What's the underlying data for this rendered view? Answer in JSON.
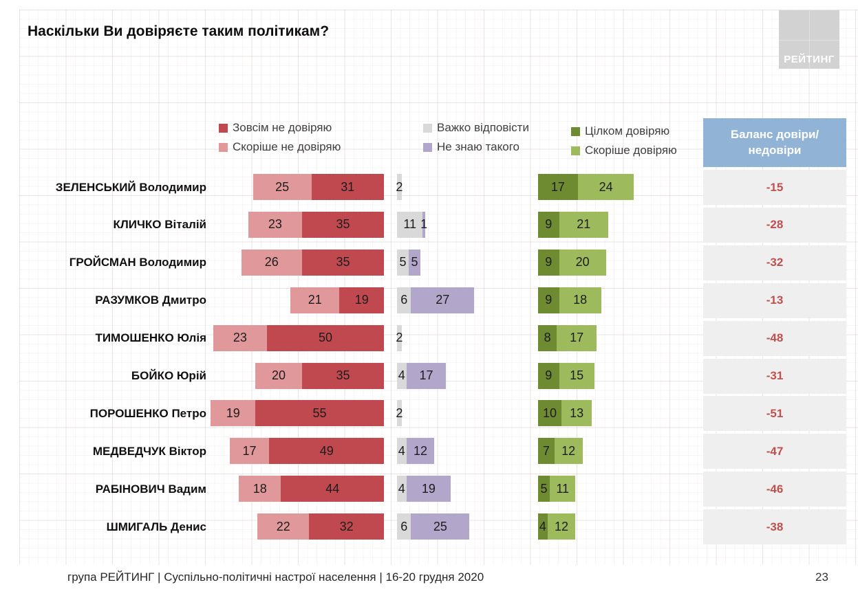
{
  "title": "Наскільки Ви довіряєте таким політикам?",
  "logo": {
    "text": "РЕЙТИНГ"
  },
  "legend": [
    {
      "label": "Зовсім не довіряю",
      "color": "#c0494f"
    },
    {
      "label": "Скоріше не довіряю",
      "color": "#e0989b"
    },
    {
      "label": "Важко відповісти",
      "color": "#d9d9d9"
    },
    {
      "label": "Не знаю такого",
      "color": "#b3a6cb"
    },
    {
      "label": "Цілком довіряю",
      "color": "#6e8b32"
    },
    {
      "label": "Скоріше довіряю",
      "color": "#9dbb5d"
    }
  ],
  "balance_header": "Баланс довіри/недовіри",
  "chart_data": {
    "type": "bar",
    "variant": "horizontal-diverging-stacked",
    "unit": "%",
    "legend_position": "top",
    "series": [
      {
        "key": "rather_not",
        "name": "Скоріше не довіряю",
        "color": "#e0989b"
      },
      {
        "key": "not_at_all",
        "name": "Зовсім не довіряю",
        "color": "#c0494f"
      },
      {
        "key": "hard_to_say",
        "name": "Важко відповісти",
        "color": "#d9d9d9"
      },
      {
        "key": "dont_know",
        "name": "Не знаю такого",
        "color": "#b3a6cb"
      },
      {
        "key": "fully",
        "name": "Цілком довіряю",
        "color": "#6e8b32"
      },
      {
        "key": "rather",
        "name": "Скоріше довіряю",
        "color": "#9dbb5d"
      }
    ],
    "rows": [
      {
        "name": "ЗЕЛЕНСЬКИЙ Володимир",
        "rather_not": 25,
        "not_at_all": 31,
        "hard_to_say": 2,
        "dont_know": null,
        "fully": 17,
        "rather": 24,
        "balance": "-15"
      },
      {
        "name": "КЛИЧКО Віталій",
        "rather_not": 23,
        "not_at_all": 35,
        "hard_to_say": 11,
        "dont_know": 1,
        "fully": 9,
        "rather": 21,
        "balance": "-28"
      },
      {
        "name": "ГРОЙСМАН Володимир",
        "rather_not": 26,
        "not_at_all": 35,
        "hard_to_say": 5,
        "dont_know": 5,
        "fully": 9,
        "rather": 20,
        "balance": "-32"
      },
      {
        "name": "РАЗУМКОВ Дмитро",
        "rather_not": 21,
        "not_at_all": 19,
        "hard_to_say": 6,
        "dont_know": 27,
        "fully": 9,
        "rather": 18,
        "balance": "-13"
      },
      {
        "name": "ТИМОШЕНКО Юлія",
        "rather_not": 23,
        "not_at_all": 50,
        "hard_to_say": 2,
        "dont_know": null,
        "fully": 8,
        "rather": 17,
        "balance": "-48"
      },
      {
        "name": "БОЙКО Юрій",
        "rather_not": 20,
        "not_at_all": 35,
        "hard_to_say": 4,
        "dont_know": 17,
        "fully": 9,
        "rather": 15,
        "balance": "-31"
      },
      {
        "name": "ПОРОШЕНКО Петро",
        "rather_not": 19,
        "not_at_all": 55,
        "hard_to_say": 2,
        "dont_know": null,
        "fully": 10,
        "rather": 13,
        "balance": "-51"
      },
      {
        "name": "МЕДВЕДЧУК Віктор",
        "rather_not": 17,
        "not_at_all": 49,
        "hard_to_say": 4,
        "dont_know": 12,
        "fully": 7,
        "rather": 12,
        "balance": "-47"
      },
      {
        "name": "РАБІНОВИЧ Вадим",
        "rather_not": 18,
        "not_at_all": 44,
        "hard_to_say": 4,
        "dont_know": 19,
        "fully": 5,
        "rather": 11,
        "balance": "-46"
      },
      {
        "name": "ШМИГАЛЬ Денис",
        "rather_not": 22,
        "not_at_all": 32,
        "hard_to_say": 6,
        "dont_know": 25,
        "fully": 4,
        "rather": 12,
        "balance": "-38"
      }
    ]
  },
  "footer": {
    "source": "група РЕЙТИНГ | Суспільно-політичні настрої населення | 16-20 грудня 2020",
    "page": "23"
  },
  "colors": {
    "balance_header_bg": "#91b3d6",
    "balance_cell_bg": "#efefef",
    "balance_value_text": "#c0504d",
    "logo_bg": "#d2d2d2"
  }
}
